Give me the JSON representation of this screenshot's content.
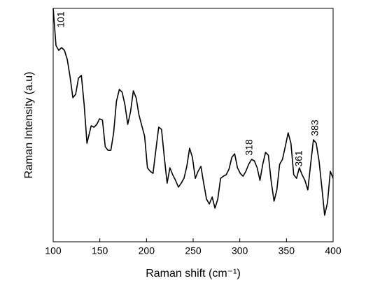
{
  "chart_data": {
    "type": "line",
    "x_label": "Raman shift (cm⁻¹)",
    "y_label": "Raman Intensity (a.u)",
    "annotations": [
      {
        "text": "101"
      },
      {
        "text": "318"
      },
      {
        "text": "361"
      },
      {
        "text": "383"
      }
    ],
    "xlim": [
      100,
      400
    ],
    "xticks": [
      100,
      150,
      200,
      250,
      300,
      350,
      400
    ],
    "ylim": [
      0,
      100
    ],
    "series": [
      {
        "color": "#000000",
        "x": [
          100,
          103.0,
          106.0,
          109.0,
          112.1,
          115.1,
          118.1,
          121.1,
          124.1,
          127.1,
          130.2,
          133.2,
          136.2,
          140.7,
          143.7,
          146.7,
          149.7,
          152.8,
          155.8,
          158.8,
          161.8,
          164.8,
          167.8,
          170.9,
          173.9,
          176.9,
          179.9,
          182.9,
          185.9,
          188.9,
          192.0,
          195.0,
          198.0,
          201.0,
          204.0,
          207.0,
          210.0,
          213.1,
          216.1,
          219.1,
          222.1,
          225.1,
          228.1,
          231.2,
          234.2,
          237.2,
          240.2,
          243.2,
          246.2,
          249.2,
          252.3,
          255.3,
          258.3,
          261.3,
          264.3,
          267.3,
          270.4,
          273.4,
          276.4,
          279.4,
          282.4,
          285.4,
          288.4,
          291.5,
          294.5,
          297.5,
          300.5,
          303.5,
          306.5,
          309.5,
          312.6,
          315.6,
          318.6,
          321.6,
          324.6,
          327.6,
          330.6,
          333.7,
          336.7,
          339.7,
          342.7,
          345.7,
          348.7,
          351.8,
          354.8,
          357.8,
          360.8,
          363.8,
          366.8,
          369.8,
          372.9,
          375.9,
          378.9,
          381.9,
          384.9,
          387.9,
          390.9,
          394.0,
          397.0,
          400.0
        ],
        "values": [
          100.0,
          84.1,
          82.0,
          83.2,
          82.0,
          78.1,
          70.7,
          61.7,
          63.2,
          70.1,
          71.3,
          58.7,
          42.2,
          49.7,
          49.1,
          50.3,
          52.7,
          52.1,
          40.7,
          39.2,
          39.2,
          46.7,
          60.2,
          65.3,
          64.1,
          58.7,
          50.3,
          55.7,
          64.7,
          61.7,
          54.2,
          49.7,
          45.2,
          31.7,
          30.2,
          29.3,
          39.2,
          49.1,
          48.2,
          36.2,
          25.1,
          31.7,
          28.7,
          26.3,
          23.4,
          25.1,
          27.2,
          32.3,
          40.1,
          36.2,
          27.2,
          30.2,
          32.3,
          25.1,
          18.3,
          16.2,
          19.2,
          14.4,
          18.3,
          27.2,
          28.1,
          28.7,
          31.1,
          36.2,
          37.7,
          31.7,
          29.3,
          28.1,
          30.2,
          33.2,
          35.3,
          34.7,
          31.7,
          26.3,
          33.2,
          38.3,
          37.1,
          25.7,
          17.4,
          22.2,
          33.2,
          35.3,
          40.7,
          46.7,
          42.2,
          28.7,
          27.2,
          31.7,
          28.7,
          26.3,
          22.2,
          33.2,
          43.7,
          42.2,
          34.7,
          23.4,
          11.4,
          16.8,
          30.2,
          27.2
        ]
      }
    ]
  }
}
